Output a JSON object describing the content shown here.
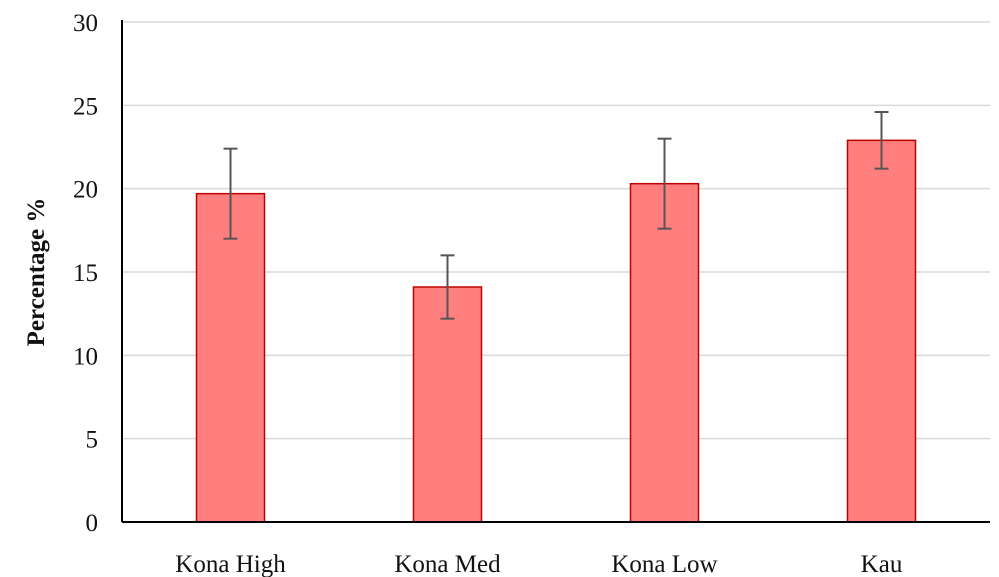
{
  "chart_data": {
    "type": "bar",
    "title": "",
    "xlabel": "",
    "ylabel": "Percentage %",
    "ylim": [
      0,
      30
    ],
    "yticks": [
      0,
      5,
      10,
      15,
      20,
      25,
      30
    ],
    "grid": true,
    "legend": "none",
    "categories": [
      "Kona High",
      "Kona Med",
      "Kona Low",
      "Kau"
    ],
    "values": [
      19.7,
      14.1,
      20.3,
      22.9
    ],
    "error": [
      2.7,
      1.9,
      2.7,
      1.7
    ],
    "colors": {
      "bar_fill": "#ff7f7f",
      "bar_stroke": "#c00000",
      "error_bar": "#555555",
      "grid": "#d9d9d9",
      "axis": "#000000"
    }
  }
}
